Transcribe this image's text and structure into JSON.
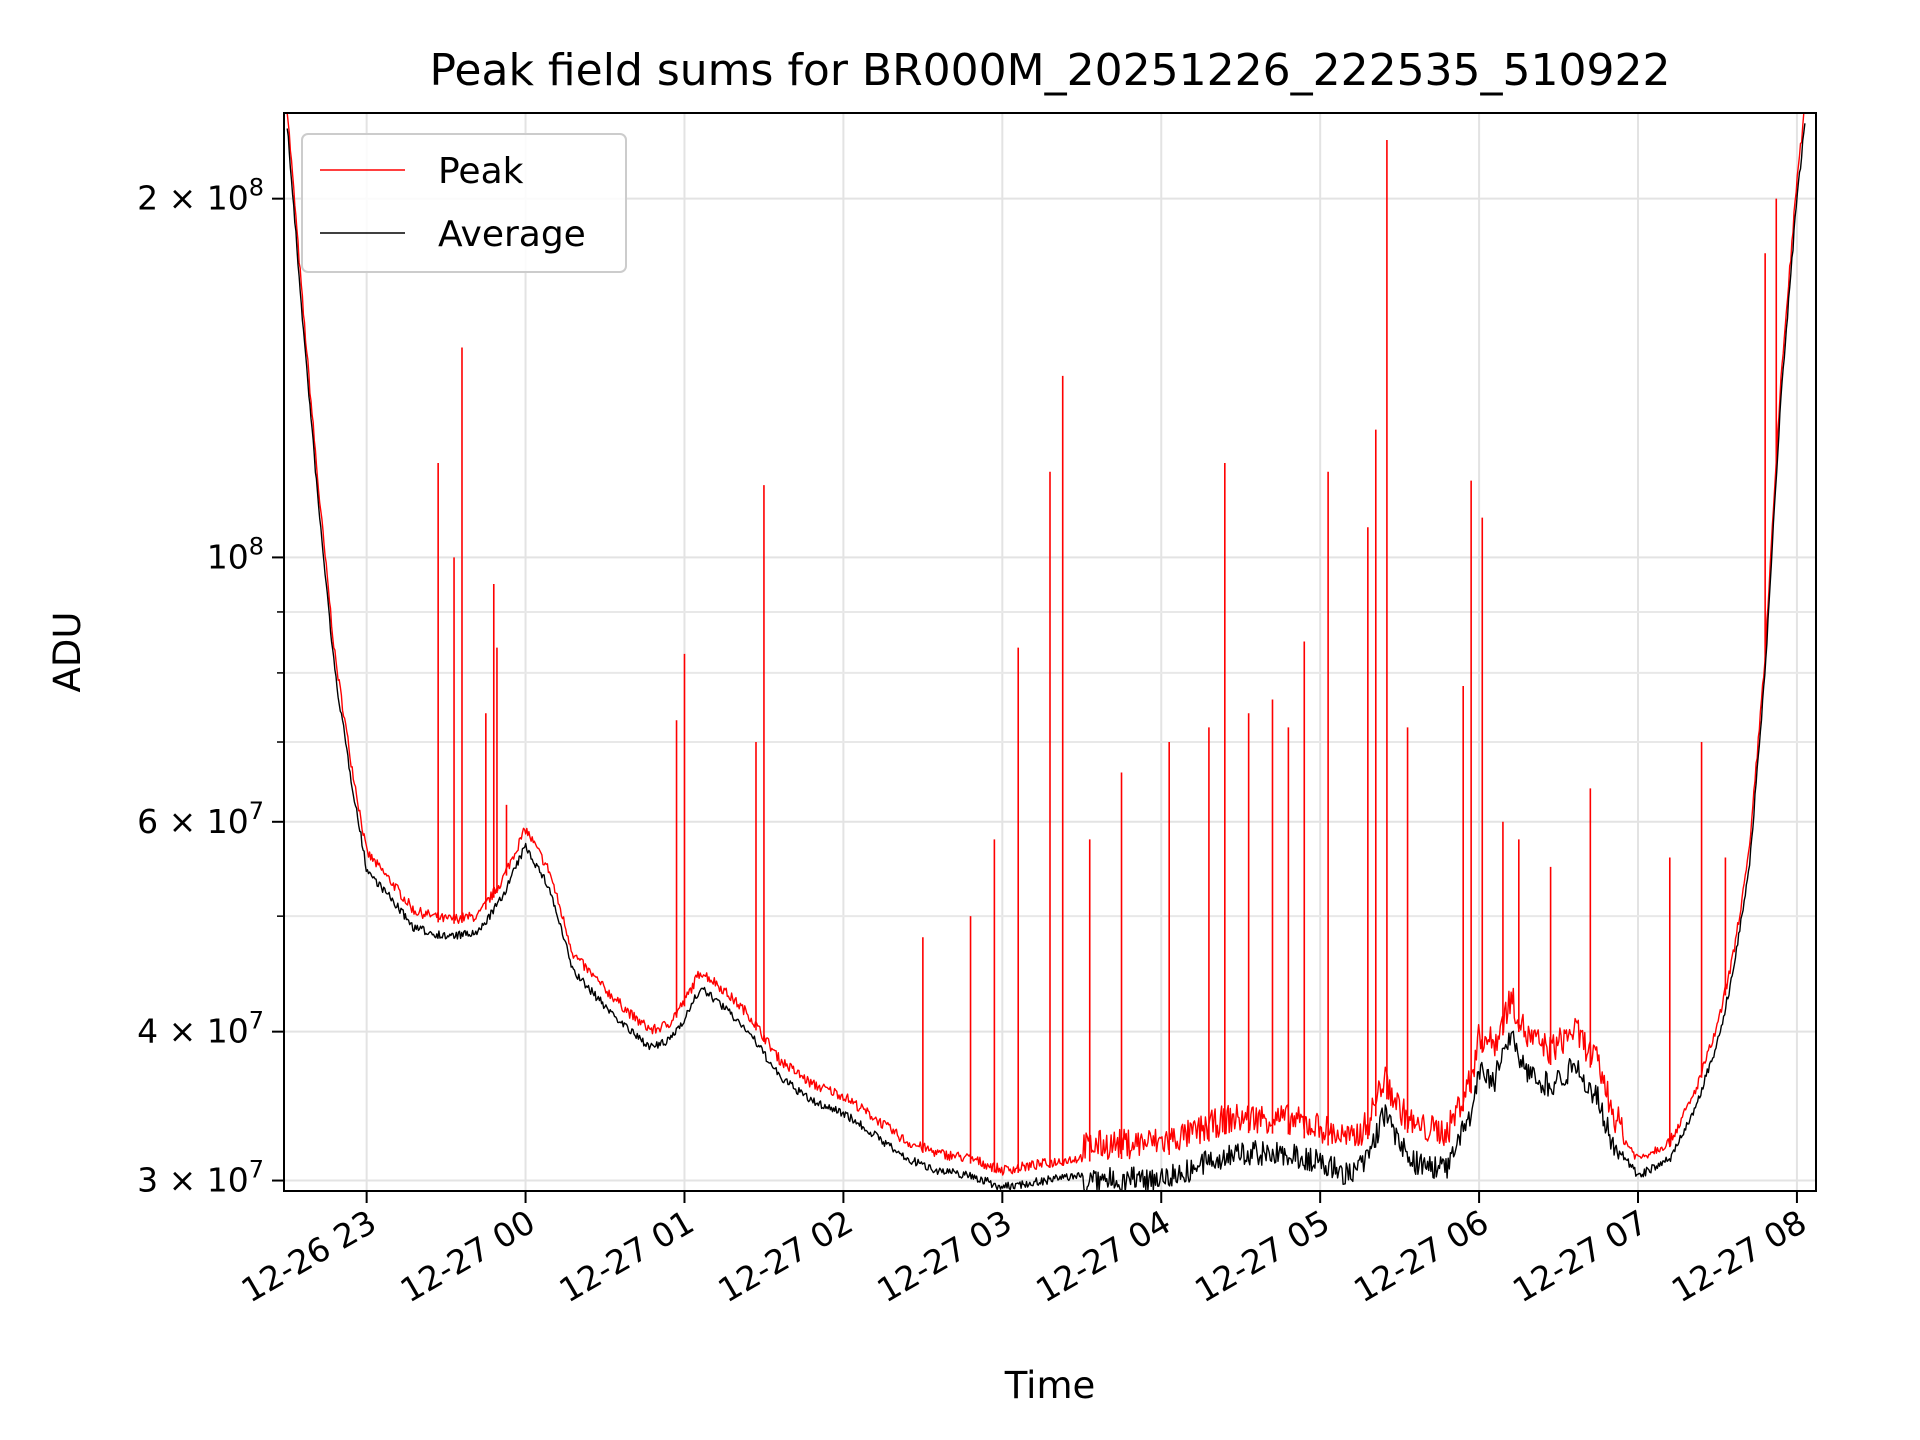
{
  "chart_data": {
    "type": "line",
    "title": "Peak field sums for BR000M_20251226_222535_510922",
    "xlabel": "Time",
    "ylabel": "ADU",
    "yscale": "log",
    "grid": true,
    "legend_position": "top-left",
    "xlim_hours": [
      -0.52,
      9.12
    ],
    "ylim": [
      29400000,
      236000000
    ],
    "x_ticks": [
      {
        "hours": 0,
        "label": "12-26 23"
      },
      {
        "hours": 1,
        "label": "12-27 00"
      },
      {
        "hours": 2,
        "label": "12-27 01"
      },
      {
        "hours": 3,
        "label": "12-27 02"
      },
      {
        "hours": 4,
        "label": "12-27 03"
      },
      {
        "hours": 5,
        "label": "12-27 04"
      },
      {
        "hours": 6,
        "label": "12-27 05"
      },
      {
        "hours": 7,
        "label": "12-27 06"
      },
      {
        "hours": 8,
        "label": "12-27 07"
      },
      {
        "hours": 9,
        "label": "12-27 08"
      }
    ],
    "y_major_ticks": [
      {
        "value": 30000000,
        "base": "3 × 10",
        "exp": "7"
      },
      {
        "value": 40000000,
        "base": "4 × 10",
        "exp": "7"
      },
      {
        "value": 60000000,
        "base": "6 × 10",
        "exp": "7"
      },
      {
        "value": 100000000,
        "base": "10",
        "exp": "8"
      },
      {
        "value": 200000000,
        "base": "2 × 10",
        "exp": "8"
      }
    ],
    "y_minor_ticks": [
      50000000,
      70000000,
      80000000,
      90000000
    ],
    "x_time_unit": "hours after 12-26 23:00",
    "series": [
      {
        "name": "Peak",
        "color": "#ff0000",
        "baseline": [
          [
            -0.5,
            236000000
          ],
          [
            -0.4,
            160000000
          ],
          [
            -0.3,
            112000000
          ],
          [
            -0.2,
            82000000
          ],
          [
            -0.1,
            67000000
          ],
          [
            0.0,
            56000000
          ],
          [
            0.15,
            53000000
          ],
          [
            0.3,
            50000000
          ],
          [
            0.5,
            49200000
          ],
          [
            0.7,
            49500000
          ],
          [
            0.85,
            53000000
          ],
          [
            1.0,
            58600000
          ],
          [
            1.15,
            54000000
          ],
          [
            1.3,
            46000000
          ],
          [
            1.5,
            43000000
          ],
          [
            1.7,
            40500000
          ],
          [
            1.8,
            39700000
          ],
          [
            1.9,
            40200000
          ],
          [
            2.0,
            42000000
          ],
          [
            2.1,
            44500000
          ],
          [
            2.2,
            43500000
          ],
          [
            2.4,
            41000000
          ],
          [
            2.6,
            37500000
          ],
          [
            2.8,
            35800000
          ],
          [
            3.0,
            35000000
          ],
          [
            3.2,
            33500000
          ],
          [
            3.4,
            32000000
          ],
          [
            3.6,
            31300000
          ],
          [
            3.8,
            31000000
          ],
          [
            4.0,
            30300000
          ],
          [
            4.2,
            30600000
          ],
          [
            4.4,
            30900000
          ],
          [
            4.6,
            31200000
          ],
          [
            4.8,
            31300000
          ],
          [
            5.0,
            31400000
          ],
          [
            5.2,
            31900000
          ],
          [
            5.4,
            32800000
          ],
          [
            5.6,
            32900000
          ],
          [
            5.8,
            32800000
          ],
          [
            6.0,
            32300000
          ],
          [
            6.2,
            31500000
          ],
          [
            6.3,
            32500000
          ],
          [
            6.4,
            35500000
          ],
          [
            6.5,
            33500000
          ],
          [
            6.6,
            32300000
          ],
          [
            6.8,
            32000000
          ],
          [
            6.95,
            35500000
          ],
          [
            7.0,
            38500000
          ],
          [
            7.1,
            38000000
          ],
          [
            7.2,
            41500000
          ],
          [
            7.3,
            38500000
          ],
          [
            7.45,
            37500000
          ],
          [
            7.6,
            39000000
          ],
          [
            7.75,
            36500000
          ],
          [
            7.85,
            33000000
          ],
          [
            8.0,
            31000000
          ],
          [
            8.2,
            32000000
          ],
          [
            8.35,
            35000000
          ],
          [
            8.5,
            40000000
          ],
          [
            8.6,
            46000000
          ],
          [
            8.7,
            56000000
          ],
          [
            8.8,
            82000000
          ],
          [
            8.9,
            140000000
          ],
          [
            9.0,
            205000000
          ],
          [
            9.05,
            236000000
          ]
        ],
        "spikes": [
          [
            0.45,
            120000000
          ],
          [
            0.55,
            100000000
          ],
          [
            0.6,
            150000000
          ],
          [
            0.75,
            74000000
          ],
          [
            0.8,
            95000000
          ],
          [
            0.82,
            84000000
          ],
          [
            0.88,
            62000000
          ],
          [
            1.95,
            73000000
          ],
          [
            2.0,
            83000000
          ],
          [
            2.45,
            70000000
          ],
          [
            2.5,
            115000000
          ],
          [
            3.5,
            48000000
          ],
          [
            3.8,
            50000000
          ],
          [
            3.95,
            58000000
          ],
          [
            4.1,
            84000000
          ],
          [
            4.3,
            118000000
          ],
          [
            4.38,
            142000000
          ],
          [
            4.55,
            58000000
          ],
          [
            4.75,
            66000000
          ],
          [
            5.05,
            70000000
          ],
          [
            5.3,
            72000000
          ],
          [
            5.4,
            120000000
          ],
          [
            5.55,
            74000000
          ],
          [
            5.7,
            76000000
          ],
          [
            5.8,
            72000000
          ],
          [
            5.9,
            85000000
          ],
          [
            6.05,
            118000000
          ],
          [
            6.3,
            106000000
          ],
          [
            6.35,
            128000000
          ],
          [
            6.42,
            224000000
          ],
          [
            6.55,
            72000000
          ],
          [
            6.9,
            78000000
          ],
          [
            6.95,
            116000000
          ],
          [
            7.02,
            108000000
          ],
          [
            7.15,
            60000000
          ],
          [
            7.25,
            58000000
          ],
          [
            7.45,
            55000000
          ],
          [
            7.7,
            64000000
          ],
          [
            8.2,
            56000000
          ],
          [
            8.4,
            70000000
          ],
          [
            8.55,
            56000000
          ],
          [
            8.8,
            180000000
          ],
          [
            8.87,
            200000000
          ]
        ]
      },
      {
        "name": "Average",
        "color": "#000000",
        "baseline_offset_ratio": 0.985
      }
    ]
  }
}
